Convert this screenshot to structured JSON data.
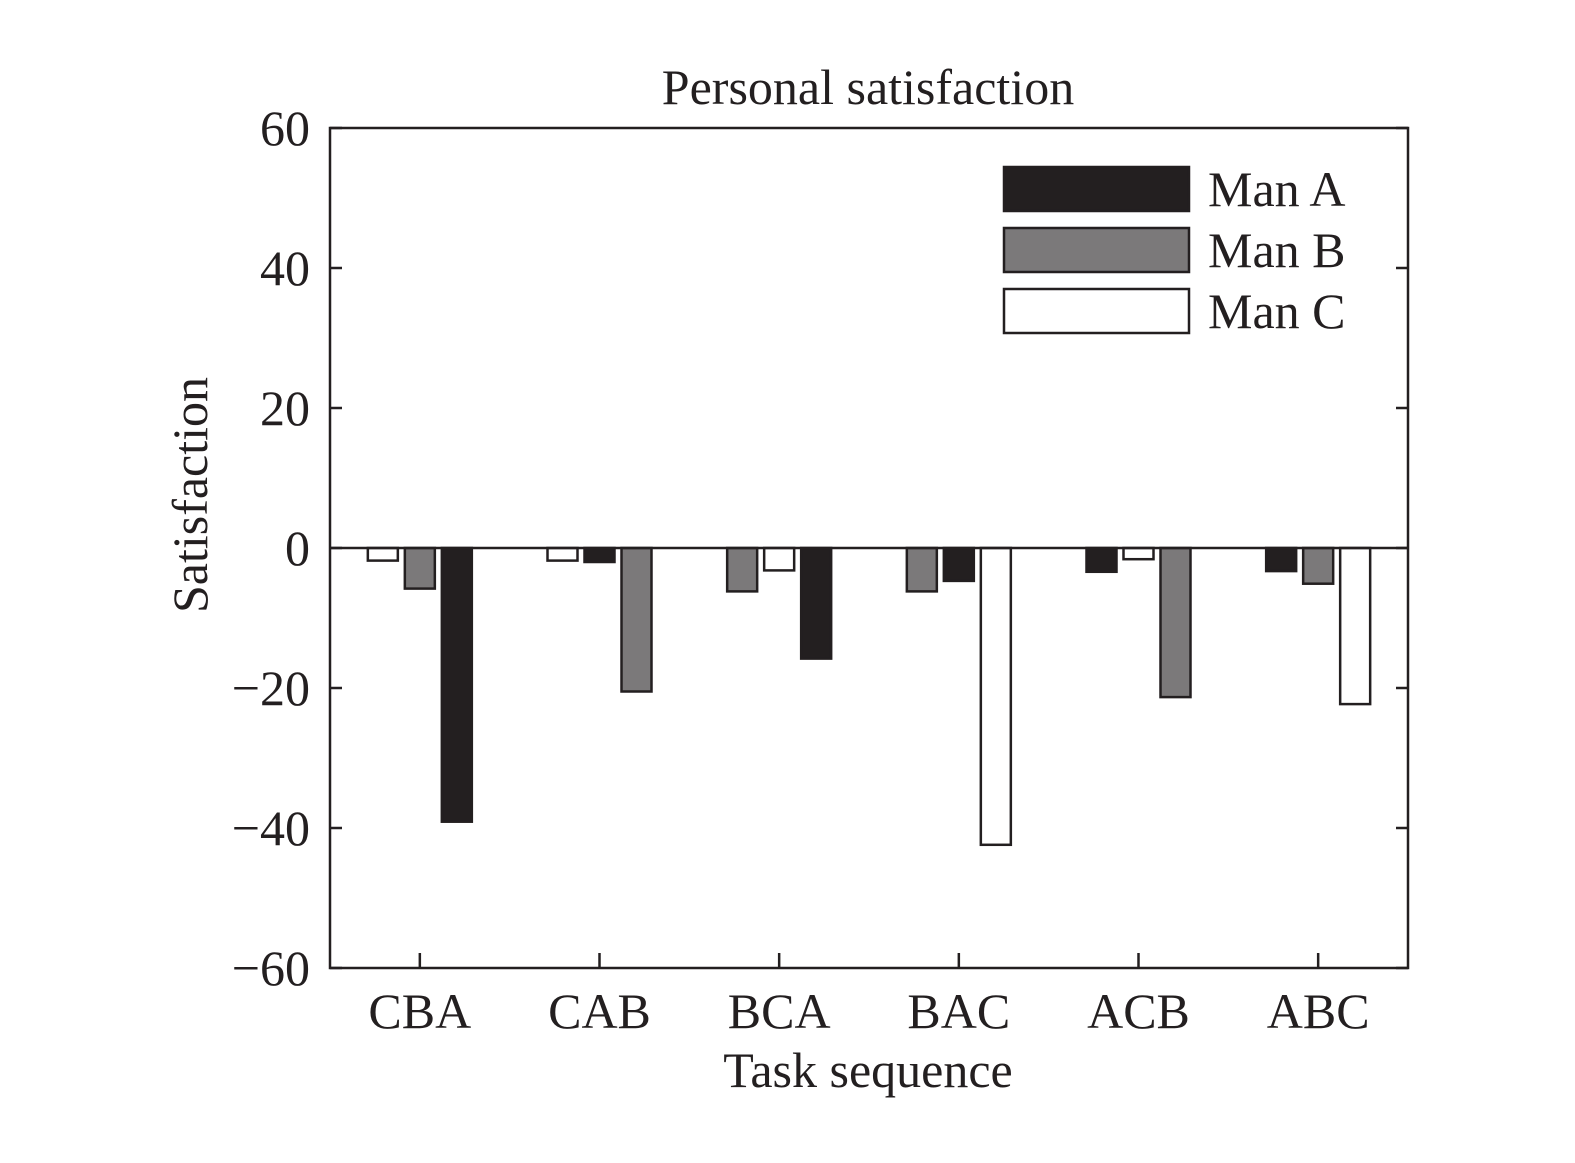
{
  "chart_data": {
    "type": "bar",
    "title": "Personal satisfaction",
    "xlabel": "Task sequence",
    "ylabel": "Satisfaction",
    "ylim": [
      -60,
      60
    ],
    "yticks": [
      60,
      40,
      20,
      0,
      -20,
      -40,
      -60
    ],
    "ytick_labels": [
      "60",
      "40",
      "20",
      "0",
      "−20",
      "−40",
      "−60"
    ],
    "categories": [
      "CBA",
      "CAB",
      "BCA",
      "BAC",
      "ACB",
      "ABC"
    ],
    "series_order_per_group": [
      [
        "Man C",
        "Man B",
        "Man A"
      ],
      [
        "Man C",
        "Man A",
        "Man B"
      ],
      [
        "Man B",
        "Man C",
        "Man A"
      ],
      [
        "Man B",
        "Man A",
        "Man C"
      ],
      [
        "Man A",
        "Man C",
        "Man B"
      ],
      [
        "Man A",
        "Man B",
        "Man C"
      ]
    ],
    "series": [
      {
        "name": "Man A",
        "color": "#231f20",
        "values": [
          -39.1,
          -2.0,
          -15.8,
          -4.7,
          -3.4,
          -3.3
        ]
      },
      {
        "name": "Man B",
        "color": "#7b797a",
        "values": [
          -5.8,
          -20.5,
          -6.2,
          -6.2,
          -21.3,
          -5.1
        ]
      },
      {
        "name": "Man C",
        "color": "#ffffff",
        "values": [
          -1.8,
          -1.8,
          -3.2,
          -42.4,
          -1.6,
          -22.3
        ]
      }
    ],
    "legend_position": "top-right",
    "grid": false
  }
}
